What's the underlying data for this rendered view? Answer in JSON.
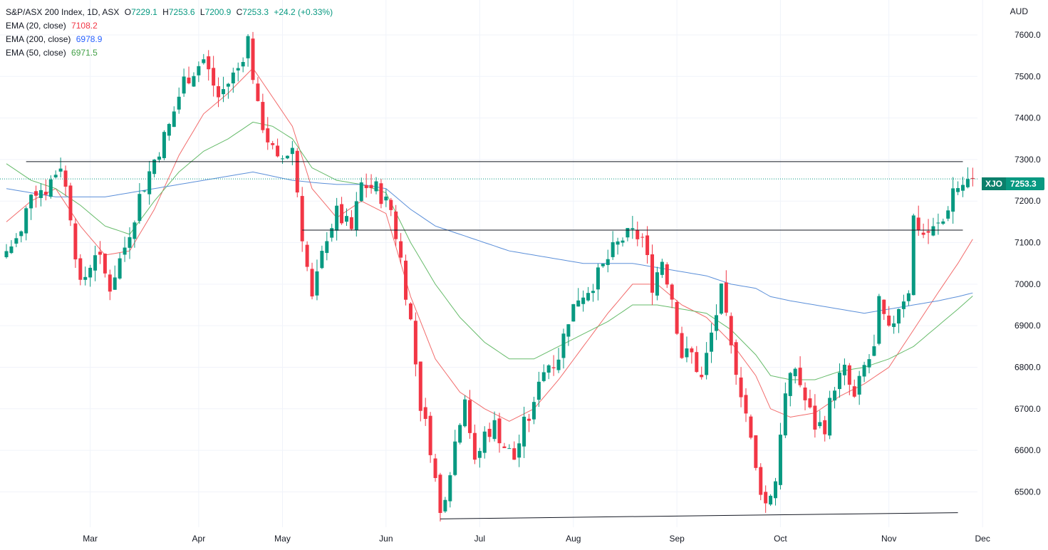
{
  "title_line": {
    "name": "S&P/ASX 200 Index, 1D, ASX",
    "open_label": "O",
    "open": "7229.1",
    "high_label": "H",
    "high": "7253.6",
    "low_label": "L",
    "low": "7200.9",
    "close_label": "C",
    "close": "7253.3",
    "change": "+24.2 (+0.33%)"
  },
  "indicators": [
    {
      "name": "EMA (20, close)",
      "value": "7108.2",
      "color": "#f23645"
    },
    {
      "name": "EMA (200, close)",
      "value": "6978.9",
      "color": "#2962ff"
    },
    {
      "name": "EMA (50, close)",
      "value": "6971.5",
      "color": "#43a047"
    }
  ],
  "currency": "AUD",
  "price_tag": {
    "symbol": "XJO",
    "value": "7253.3"
  },
  "colors": {
    "up": "#089981",
    "down": "#f23645",
    "grid": "#f0f3fa",
    "ema20": "#f26b6b",
    "ema50": "#66bb6a",
    "ema200": "#5b8fd9"
  },
  "chart_data": {
    "type": "candlestick",
    "title": "S&P/ASX 200 Index, 1D, ASX",
    "ylim": [
      6415,
      7660
    ],
    "y_ticks": [
      6500,
      6600,
      6700,
      6800,
      6900,
      7000,
      7100,
      7200,
      7300,
      7400,
      7500,
      7600
    ],
    "x_ticks": [
      "Mar",
      "Apr",
      "May",
      "Jun",
      "Jul",
      "Aug",
      "Sep",
      "Oct",
      "Nov",
      "Dec"
    ],
    "x_tick_index": [
      17,
      39,
      56,
      77,
      96,
      115,
      136,
      157,
      179,
      198
    ],
    "last_price": 7253.3,
    "horizontal_lines": [
      7295,
      7130
    ],
    "trend_line": {
      "from": {
        "index": 88,
        "price": 6435
      },
      "to": {
        "index": 193,
        "price": 6450
      }
    },
    "anchors": [
      [
        0,
        7080
      ],
      [
        3,
        7120
      ],
      [
        5,
        7230
      ],
      [
        8,
        7230
      ],
      [
        11,
        7290
      ],
      [
        13,
        7170
      ],
      [
        15,
        6990
      ],
      [
        18,
        7080
      ],
      [
        21,
        6995
      ],
      [
        24,
        7090
      ],
      [
        27,
        7210
      ],
      [
        30,
        7300
      ],
      [
        33,
        7380
      ],
      [
        36,
        7490
      ],
      [
        40,
        7540
      ],
      [
        43,
        7450
      ],
      [
        47,
        7520
      ],
      [
        49,
        7590
      ],
      [
        51,
        7420
      ],
      [
        53,
        7350
      ],
      [
        55,
        7290
      ],
      [
        58,
        7330
      ],
      [
        60,
        7120
      ],
      [
        62,
        6960
      ],
      [
        65,
        7120
      ],
      [
        67,
        7170
      ],
      [
        70,
        7130
      ],
      [
        72,
        7240
      ],
      [
        75,
        7230
      ],
      [
        78,
        7180
      ],
      [
        80,
        7060
      ],
      [
        82,
        6910
      ],
      [
        84,
        6710
      ],
      [
        86,
        6610
      ],
      [
        88,
        6445
      ],
      [
        90,
        6560
      ],
      [
        93,
        6740
      ],
      [
        95,
        6560
      ],
      [
        97,
        6640
      ],
      [
        99,
        6660
      ],
      [
        101,
        6610
      ],
      [
        103,
        6580
      ],
      [
        105,
        6660
      ],
      [
        107,
        6700
      ],
      [
        108,
        6780
      ],
      [
        110,
        6810
      ],
      [
        112,
        6830
      ],
      [
        114,
        6920
      ],
      [
        116,
        6970
      ],
      [
        118,
        6990
      ],
      [
        120,
        7020
      ],
      [
        123,
        7080
      ],
      [
        125,
        7110
      ],
      [
        127,
        7120
      ],
      [
        129,
        7110
      ],
      [
        131,
        7000
      ],
      [
        133,
        7060
      ],
      [
        135,
        6970
      ],
      [
        137,
        6830
      ],
      [
        139,
        6830
      ],
      [
        141,
        6770
      ],
      [
        143,
        6880
      ],
      [
        145,
        6980
      ],
      [
        147,
        6840
      ],
      [
        148,
        6800
      ],
      [
        150,
        6690
      ],
      [
        152,
        6550
      ],
      [
        154,
        6470
      ],
      [
        156,
        6530
      ],
      [
        157,
        6650
      ],
      [
        158,
        6730
      ],
      [
        160,
        6800
      ],
      [
        162,
        6720
      ],
      [
        164,
        6660
      ],
      [
        166,
        6660
      ],
      [
        168,
        6760
      ],
      [
        170,
        6790
      ],
      [
        172,
        6720
      ],
      [
        174,
        6800
      ],
      [
        176,
        6840
      ],
      [
        177,
        6950
      ],
      [
        179,
        6880
      ],
      [
        181,
        6950
      ],
      [
        183,
        6990
      ],
      [
        184,
        7160
      ],
      [
        186,
        7120
      ],
      [
        188,
        7130
      ],
      [
        190,
        7150
      ],
      [
        192,
        7230
      ],
      [
        194,
        7240
      ],
      [
        196,
        7253.3
      ]
    ],
    "ema_anchors": {
      "EMA 20": [
        [
          0,
          7150
        ],
        [
          5,
          7200
        ],
        [
          10,
          7230
        ],
        [
          15,
          7140
        ],
        [
          20,
          7070
        ],
        [
          25,
          7080
        ],
        [
          30,
          7180
        ],
        [
          35,
          7310
        ],
        [
          40,
          7410
        ],
        [
          45,
          7460
        ],
        [
          50,
          7520
        ],
        [
          54,
          7450
        ],
        [
          58,
          7380
        ],
        [
          62,
          7230
        ],
        [
          67,
          7160
        ],
        [
          72,
          7200
        ],
        [
          77,
          7170
        ],
        [
          82,
          6970
        ],
        [
          87,
          6820
        ],
        [
          92,
          6740
        ],
        [
          97,
          6700
        ],
        [
          102,
          6670
        ],
        [
          107,
          6700
        ],
        [
          112,
          6770
        ],
        [
          117,
          6850
        ],
        [
          122,
          6930
        ],
        [
          127,
          7000
        ],
        [
          132,
          7000
        ],
        [
          137,
          6950
        ],
        [
          142,
          6920
        ],
        [
          147,
          6860
        ],
        [
          152,
          6780
        ],
        [
          155,
          6700
        ],
        [
          159,
          6680
        ],
        [
          164,
          6690
        ],
        [
          169,
          6730
        ],
        [
          174,
          6760
        ],
        [
          179,
          6800
        ],
        [
          184,
          6890
        ],
        [
          189,
          6980
        ],
        [
          193,
          7050
        ],
        [
          196,
          7108.2
        ]
      ],
      "EMA 50": [
        [
          0,
          7290
        ],
        [
          5,
          7250
        ],
        [
          10,
          7230
        ],
        [
          15,
          7190
        ],
        [
          20,
          7140
        ],
        [
          25,
          7120
        ],
        [
          30,
          7200
        ],
        [
          35,
          7270
        ],
        [
          40,
          7320
        ],
        [
          45,
          7350
        ],
        [
          50,
          7390
        ],
        [
          54,
          7380
        ],
        [
          58,
          7350
        ],
        [
          62,
          7280
        ],
        [
          67,
          7250
        ],
        [
          72,
          7240
        ],
        [
          77,
          7220
        ],
        [
          82,
          7100
        ],
        [
          87,
          7000
        ],
        [
          92,
          6920
        ],
        [
          97,
          6860
        ],
        [
          102,
          6820
        ],
        [
          107,
          6820
        ],
        [
          112,
          6850
        ],
        [
          117,
          6880
        ],
        [
          122,
          6910
        ],
        [
          127,
          6950
        ],
        [
          132,
          6950
        ],
        [
          137,
          6940
        ],
        [
          142,
          6930
        ],
        [
          147,
          6890
        ],
        [
          152,
          6830
        ],
        [
          155,
          6780
        ],
        [
          159,
          6770
        ],
        [
          164,
          6770
        ],
        [
          169,
          6790
        ],
        [
          174,
          6800
        ],
        [
          179,
          6820
        ],
        [
          184,
          6850
        ],
        [
          189,
          6900
        ],
        [
          193,
          6940
        ],
        [
          196,
          6971.5
        ]
      ],
      "EMA 200": [
        [
          0,
          7230
        ],
        [
          5,
          7220
        ],
        [
          10,
          7210
        ],
        [
          15,
          7210
        ],
        [
          20,
          7210
        ],
        [
          25,
          7220
        ],
        [
          30,
          7230
        ],
        [
          35,
          7240
        ],
        [
          40,
          7250
        ],
        [
          45,
          7260
        ],
        [
          50,
          7270
        ],
        [
          54,
          7260
        ],
        [
          58,
          7250
        ],
        [
          62,
          7245
        ],
        [
          67,
          7240
        ],
        [
          72,
          7240
        ],
        [
          77,
          7230
        ],
        [
          82,
          7180
        ],
        [
          87,
          7140
        ],
        [
          92,
          7120
        ],
        [
          97,
          7100
        ],
        [
          102,
          7080
        ],
        [
          107,
          7070
        ],
        [
          112,
          7060
        ],
        [
          117,
          7050
        ],
        [
          122,
          7050
        ],
        [
          127,
          7050
        ],
        [
          132,
          7040
        ],
        [
          137,
          7030
        ],
        [
          142,
          7020
        ],
        [
          147,
          7000
        ],
        [
          152,
          6990
        ],
        [
          155,
          6970
        ],
        [
          159,
          6960
        ],
        [
          164,
          6950
        ],
        [
          169,
          6940
        ],
        [
          174,
          6930
        ],
        [
          179,
          6940
        ],
        [
          184,
          6950
        ],
        [
          189,
          6960
        ],
        [
          193,
          6970
        ],
        [
          196,
          6978.9
        ]
      ]
    }
  }
}
